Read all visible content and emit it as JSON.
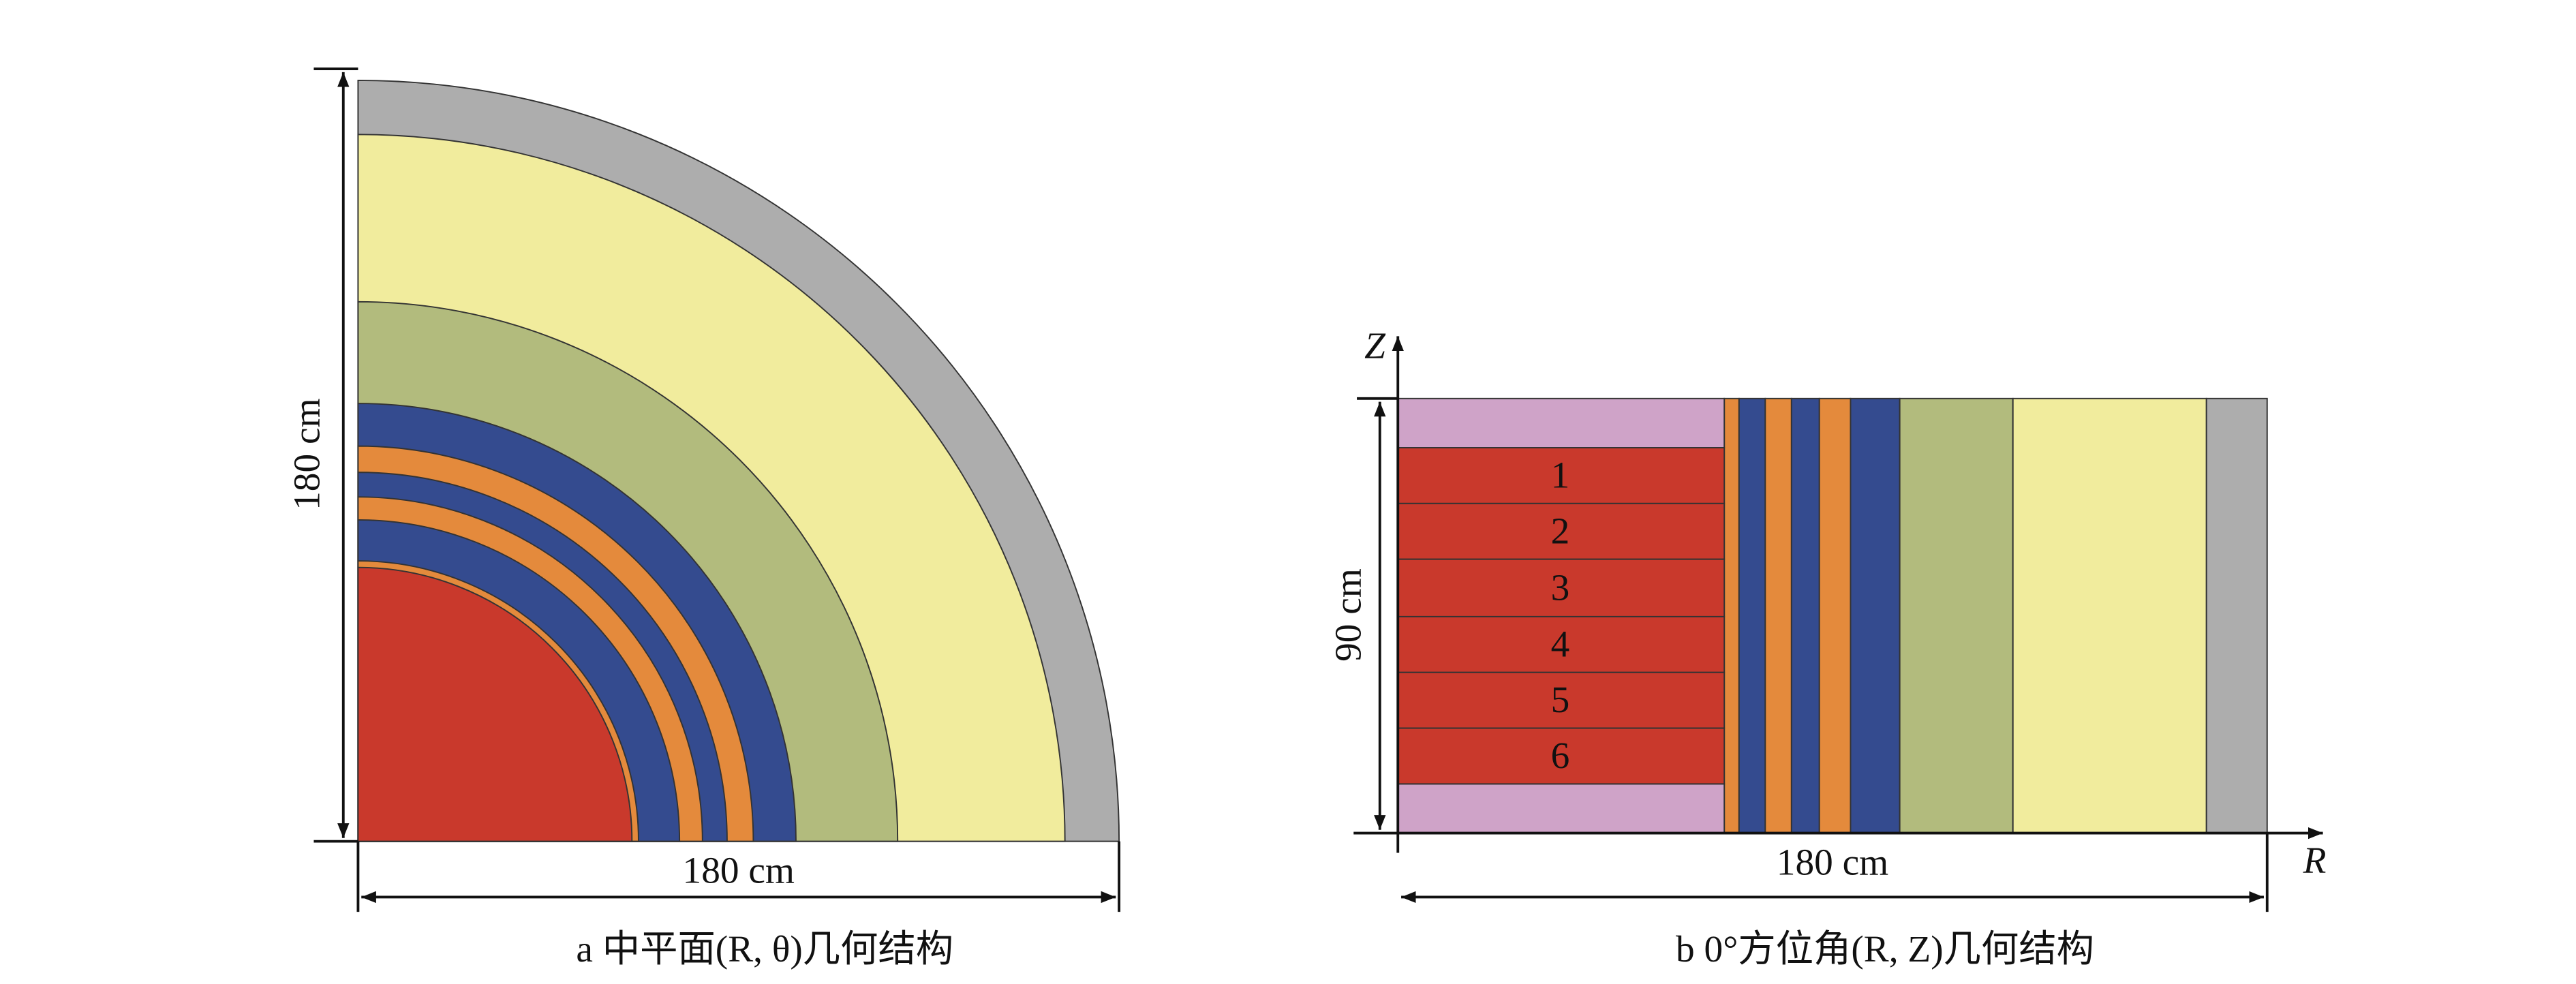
{
  "panel_a": {
    "height_label": "180 cm",
    "width_label": "180 cm",
    "caption": "a 中平面(R, θ)几何结构"
  },
  "panel_b": {
    "axis_z": "Z",
    "axis_r": "R",
    "height_label": "90 cm",
    "width_label": "180 cm",
    "zones": [
      "1",
      "2",
      "3",
      "4",
      "5",
      "6"
    ],
    "caption": "b 0°方位角(R, Z)几何结构"
  }
}
